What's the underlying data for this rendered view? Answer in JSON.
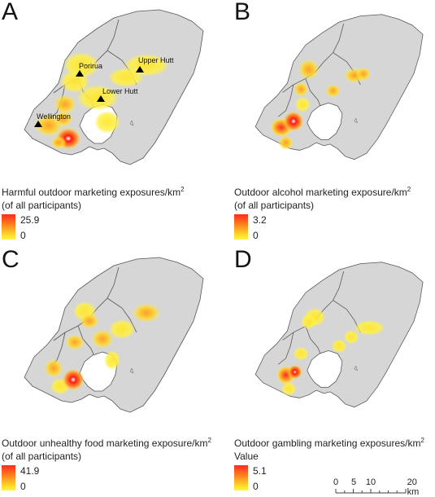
{
  "panels": [
    {
      "letter": "A",
      "title": "Harmful outdoor marketing exposures/km",
      "title_sup": "2",
      "subtitle": "(of all participants)",
      "legend_max": "25.9",
      "legend_min": "0",
      "place_labels": [
        "Porirua",
        "Upper Hutt",
        "Lower Hutt",
        "Wellington"
      ]
    },
    {
      "letter": "B",
      "title": "Outdoor alcohol marketing exposure/km",
      "title_sup": "2",
      "subtitle": "(of all participants)",
      "legend_max": "3.2",
      "legend_min": "0"
    },
    {
      "letter": "C",
      "title": "Outdoor unhealthy food marketing exposure/km",
      "title_sup": "2",
      "subtitle": "(of all participants)",
      "legend_max": "41.9",
      "legend_min": "0"
    },
    {
      "letter": "D",
      "title": "Outdoor gambling marketing exposures/km",
      "title_sup": "2",
      "subtitle": "Value",
      "legend_max": "5.1",
      "legend_min": "0"
    }
  ],
  "scalebar": {
    "labels": [
      "0",
      "5",
      "10",
      "20 km"
    ]
  },
  "colors": {
    "land": "#d6d6d6",
    "border": "#555555",
    "water": "#ffffff",
    "heat_low": "#fff24a",
    "heat_mid": "#ff9a1f",
    "heat_high": "#ff2a1c"
  }
}
